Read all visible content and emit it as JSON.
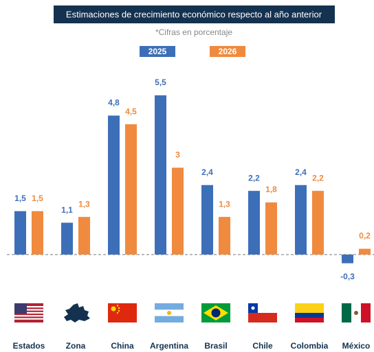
{
  "chart_data": {
    "type": "bar",
    "title": "Estimaciones de crecimiento económico respecto al año anterior",
    "subtitle": "*Cifras en porcentaje",
    "categories": [
      "Estados",
      "Zona",
      "China",
      "Argentina",
      "Brasil",
      "Chile",
      "Colombia",
      "México"
    ],
    "series": [
      {
        "name": "2025",
        "color": "#3d6fb8",
        "values": [
          1.5,
          1.1,
          4.8,
          5.5,
          2.4,
          2.2,
          2.4,
          -0.3
        ],
        "value_labels": [
          "1,5",
          "1,1",
          "4,8",
          "5,5",
          "2,4",
          "2,2",
          "2,4",
          "-0,3"
        ]
      },
      {
        "name": "2026",
        "color": "#f08a3e",
        "values": [
          1.5,
          1.3,
          4.5,
          3,
          1.3,
          1.8,
          2.2,
          0.2
        ],
        "value_labels": [
          "1,5",
          "1,3",
          "4,5",
          "3",
          "1,3",
          "1,8",
          "2,2",
          "0,2"
        ]
      }
    ],
    "ylim": [
      -1,
      6
    ]
  }
}
